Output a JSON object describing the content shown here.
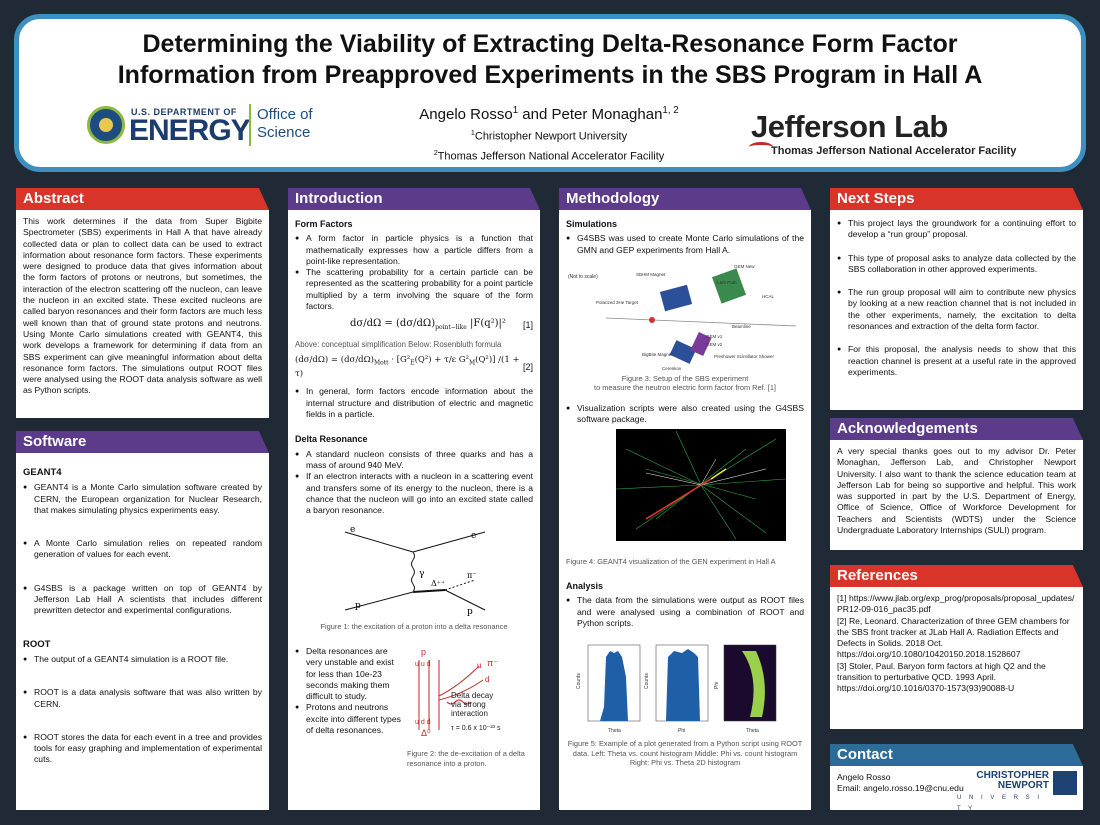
{
  "header": {
    "title_line1": "Determining the Viability of Extracting Delta-Resonance Form Factor",
    "title_line2": "Information from Preapproved Experiments in the SBS Program in Hall A",
    "author1": "Angelo Rosso",
    "author1_sup": "1",
    "author_and": " and Peter Monaghan",
    "author2_sup": "1, 2",
    "aff1_sup": "1",
    "aff1": "Christopher Newport University",
    "aff2_sup": "2",
    "aff2": "Thomas Jefferson National Accelerator Facility",
    "doe_small": "U.S. DEPARTMENT OF",
    "doe_big": "ENERGY",
    "doe_office_line1": "Office of",
    "doe_office_line2": "Science",
    "jlab_big": "Jefferson Lab",
    "jlab_small": "Thomas Jefferson National Accelerator Facility"
  },
  "abstract": {
    "heading": "Abstract",
    "text": "This work determines if the data from Super Bigbite Spectrometer (SBS) experiments in Hall A that have already collected data or plan to collect data can be used to extract information about resonance form factors. These experiments were designed to produce data that gives information about the form factors of protons or neutrons, but sometimes, the interaction of the electron scattering off the nucleon, can leave the nucleon in an excited state. These excited nucleons are called baryon resonances and their form factors are much less well known than that of ground state protons and neutrons. Using Monte Carlo simulations created with GEANT4, this work develops a framework for determining if data from an SBS experiment can give meaningful information about delta resonance form factors. The simulations output ROOT files were analysed using the ROOT data analysis software as well as Python scripts."
  },
  "software": {
    "heading": "Software",
    "geant_title": "GEANT4",
    "geant_items": [
      "GEANT4 is a Monte Carlo simulation software created by CERN, the European organization for Nuclear Research, that makes simulating physics experiments easy.",
      "A Monte Carlo simulation relies on repeated random generation of values for each event.",
      "G4SBS is a package written on top of GEANT4 by Jefferson Lab Hall A scientists that includes different prewritten detector and experimental configurations."
    ],
    "root_title": "ROOT",
    "root_items": [
      "The output of a GEANT4 simulation is a ROOT file.",
      "ROOT is a data analysis software that was also written by CERN.",
      "ROOT stores the data for each event in a tree and provides tools for easy graphing and implementation of experimental cuts."
    ]
  },
  "introduction": {
    "heading": "Introduction",
    "ff_title": "Form Factors",
    "ff_items": [
      "A form factor in particle physics is a function that mathematically expresses how a particle differs from a point-like representation.",
      "The scattering probability for a certain particle can be represented as the scattering probability for a point particle multiplied by a term involving the square of the form factors."
    ],
    "eq1_num": "[1]",
    "eq_caption": "Above: conceptual simplification   Below: Rosenbluth formula",
    "eq2_num": "[2]",
    "ff_item3": "In general, form factors encode information about the internal structure and distribution of electric and magnetic fields in a particle.",
    "dr_title": "Delta Resonance",
    "dr_items": [
      "A standard nucleon consists of three quarks and has a mass of around 940 MeV.",
      "If an electron interacts with a nucleon in a scattering event and transfers some of its energy to the nucleon, there is a chance that the nucleon will go into an excited state called a baryon resonance."
    ],
    "fig1_caption": "Figure 1: the excitation of a proton into a delta resonance",
    "fig1_labels": {
      "e_in": "e",
      "e_out": "e",
      "gamma": "γ",
      "delta": "Δ⁺⁺",
      "pi": "π⁻",
      "p_in": "p",
      "p_out": "p"
    },
    "dr_items2": [
      "Delta resonances are very unstable and exist for less than 10e-23 seconds making them difficult to study.",
      "Protons and neutrons excite into different types of delta resonances."
    ],
    "fig2_caption": "Figure 2: the de-excitation of a delta resonance into a proton.",
    "fig2_labels": {
      "p": "p",
      "uud_top": "u u d",
      "uud_bot": "u d d",
      "pi": "π⁻",
      "ubar": "u",
      "d": "d",
      "decay1": "Delta decay",
      "decay2": "via strong",
      "decay3": "interaction",
      "delta0": "Δ⁰",
      "tau": "τ = 0.6 x 10⁻²³  s"
    }
  },
  "methodology": {
    "heading": "Methodology",
    "sim_title": "Simulations",
    "sim_item1": "G4SBS was used to create Monte Carlo simulations of the GMN and GEP experiments from Hall A.",
    "fig3_labels": {
      "not_to_scale": "(Not to scale)",
      "bbhm": "SBHM Magnet",
      "target": "Polarized 3He Target",
      "beamline": "Beamline",
      "gem_new": "GEM New",
      "hcal": "HCAL",
      "bigbite": "BigBite Magnet",
      "cerenkov": "Cerenkov",
      "gem1": "GEM v1",
      "gem2": "GEM v2",
      "preshower": "Preshower Scintillator Shower",
      "one_five": "1.5m Path"
    },
    "fig3_caption_1": "Figure 3: Setup of the SBS experiment",
    "fig3_caption_2": "to measure the neutron electric form factor from Ref. [1]",
    "sim_item2": "Visualization scripts were also created using the G4SBS software package.",
    "fig4_caption": "Figure 4: GEANT4 visualization of the GEN experiment in Hall A",
    "analysis_title": "Analysis",
    "analysis_item": "The data from the simulations were output as ROOT files and were analysed using a combination of ROOT and Python scripts.",
    "fig5_caption": "Figure 5: Example of a plot generated from a Python script using ROOT data. Left: Theta vs. count histogram Middle: Phi vs. count histogram Right: Phi vs. Theta 2D histogram",
    "fig5_labels": {
      "theta": "Theta",
      "phi": "Phi",
      "counts": "Counts"
    }
  },
  "next_steps": {
    "heading": "Next Steps",
    "items": [
      "This project lays the groundwork for a continuing effort to develop a “run group” proposal.",
      "This type of proposal asks to analyze data collected by the SBS collaboration in other approved experiments.",
      "The run group proposal will aim to contribute new physics by looking at a new reaction channel that is not included in the other experiments, namely, the excitation to delta resonances and extraction of the delta form factor.",
      "For this proposal, the analysis needs to show that this reaction channel is present at a useful rate  in the approved experiments."
    ]
  },
  "acknowledgements": {
    "heading": "Acknowledgements",
    "text": "A very special thanks goes out to my advisor Dr. Peter Monaghan, Jefferson Lab, and Christopher Newport University. I also want to thank the science education team at Jefferson Lab for being so supportive and helpful. This work was supported in part by the U.S. Department of Energy, Office of Science, Office of Workforce Development for Teachers and Scientists (WDTS) under the Science Undergraduate Laboratory Internships (SULI) program."
  },
  "references": {
    "heading": "References",
    "items": [
      "[1] https://www.jlab.org/exp_prog/proposals/proposal_updates/PR12-09-016_pac35.pdf",
      "[2] Re, Leonard. Characterization of three GEM chambers for the SBS front tracker at JLab Hall A. Radiation Effects and Defects in Solids. 2018 Oct. https://doi.org/10.1080/10420150.2018.1528607",
      "[3] Stoler, Paul. Baryon form factors at high Q2 and the transition to perturbative QCD.  1993 April. https://doi.org/10.1016/0370-1573(93)90088-U"
    ]
  },
  "contact": {
    "heading": "Contact",
    "name": "Angelo Rosso",
    "email": "Email: angelo.rosso.19@cnu.edu",
    "logo_line1": "CHRISTOPHER",
    "logo_line2": "NEWPORT",
    "logo_line3": "U N I V E R S I T Y"
  },
  "colors": {
    "red": "#d8342a",
    "purple": "#5c3c8a",
    "blue": "#2b6d98",
    "background": "#1f2a36",
    "header_border": "#3c8fbf"
  }
}
